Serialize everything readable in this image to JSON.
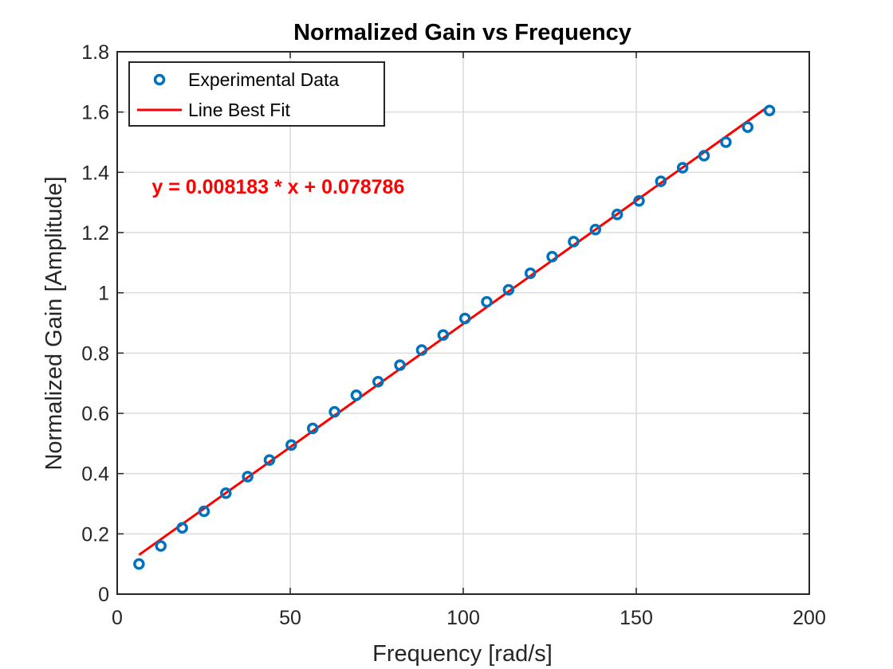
{
  "chart_data": {
    "type": "scatter",
    "title": "Normalized Gain vs Frequency",
    "xlabel": "Frequency [rad/s]",
    "ylabel": "Normalized Gain [Amplitude]",
    "xlim": [
      0,
      200
    ],
    "ylim": [
      0,
      1.8
    ],
    "xticks": [
      "0",
      "50",
      "100",
      "150",
      "200"
    ],
    "yticks": [
      "0",
      "0.2",
      "0.4",
      "0.6",
      "0.8",
      "1",
      "1.2",
      "1.4",
      "1.6",
      "1.8"
    ],
    "grid": true,
    "legend_position": "top-left",
    "series": [
      {
        "name": "Experimental Data",
        "kind": "markers",
        "color": "#0072BD",
        "x": [
          6.3,
          12.6,
          18.8,
          25.1,
          31.4,
          37.7,
          44.0,
          50.3,
          56.5,
          62.8,
          69.1,
          75.4,
          81.7,
          88.0,
          94.2,
          100.5,
          106.8,
          113.1,
          119.4,
          125.7,
          131.9,
          138.2,
          144.5,
          150.8,
          157.1,
          163.4,
          169.6,
          175.9,
          182.2,
          188.5
        ],
        "y": [
          0.1,
          0.16,
          0.22,
          0.275,
          0.335,
          0.39,
          0.445,
          0.495,
          0.55,
          0.605,
          0.66,
          0.705,
          0.76,
          0.81,
          0.86,
          0.915,
          0.97,
          1.01,
          1.065,
          1.12,
          1.17,
          1.21,
          1.26,
          1.305,
          1.37,
          1.415,
          1.455,
          1.5,
          1.55,
          1.605
        ]
      },
      {
        "name": "Line Best Fit",
        "kind": "line",
        "color": "#FF0000",
        "x": [
          6.3,
          188.5
        ],
        "y": [
          0.1303,
          1.6213
        ]
      }
    ],
    "annotations": [
      {
        "text": "y = 0.008183 * x + 0.078786",
        "x": 10,
        "y": 1.33,
        "color": "#FF0000"
      }
    ]
  }
}
